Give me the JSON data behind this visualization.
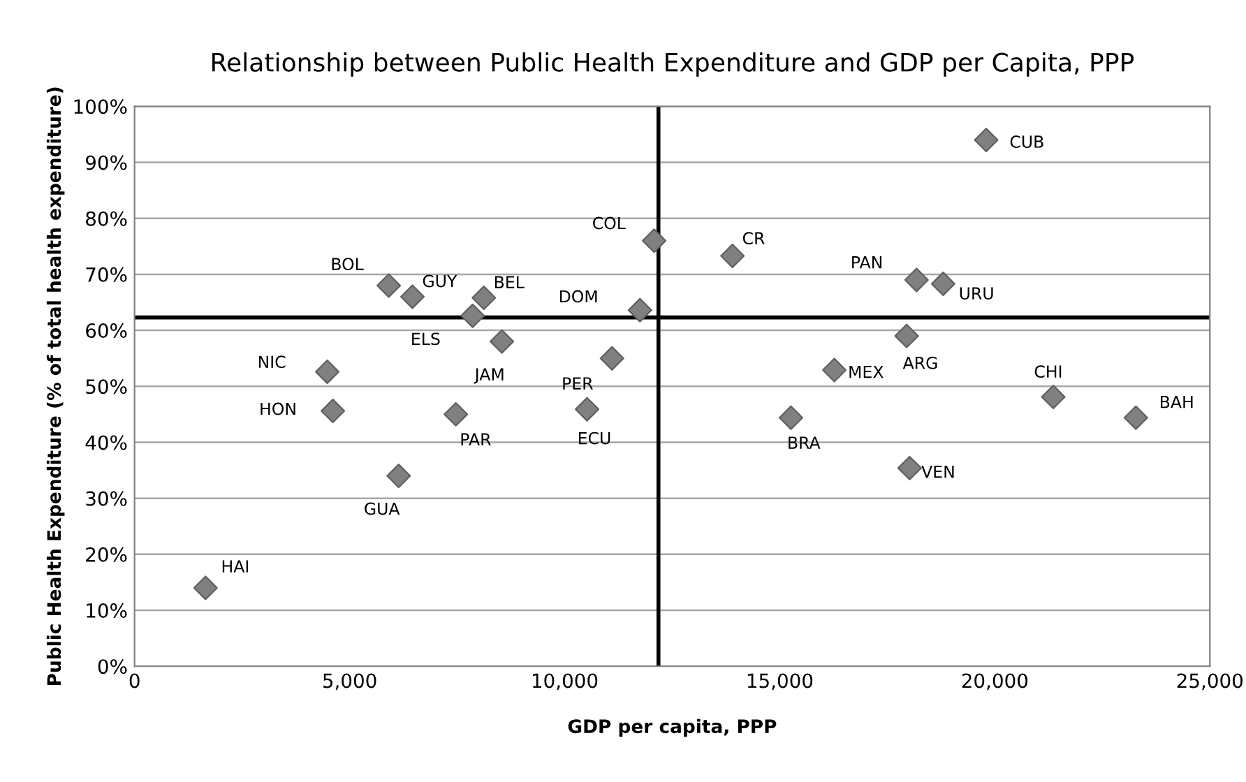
{
  "chart_data": {
    "type": "scatter",
    "title": "Relationship between Public Health Expenditure and GDP per Capita, PPP",
    "xlabel": "GDP per capita, PPP",
    "ylabel": "Public Health Expenditure (% of total health expenditure)",
    "x": [
      1650,
      4480,
      4610,
      5910,
      6460,
      6140,
      7470,
      7860,
      8120,
      8540,
      10520,
      11100,
      11750,
      12080,
      13900,
      15260,
      16270,
      18020,
      17950,
      18180,
      18800,
      19800,
      21360,
      23280
    ],
    "series": [
      {
        "color": "#808080",
        "values": [
          14,
          52.6,
          45.6,
          68,
          66,
          34,
          45,
          62.6,
          65.8,
          58,
          45.9,
          55,
          63.6,
          76,
          73.3,
          44.4,
          52.9,
          35.4,
          59,
          69,
          68.3,
          94,
          48.1,
          44.4
        ]
      }
    ],
    "annotations": [
      {
        "text": "HAI",
        "x": 1650,
        "y": 14
      },
      {
        "text": "NIC",
        "x": 4480,
        "y": 52.6
      },
      {
        "text": "HON",
        "x": 4610,
        "y": 45.6
      },
      {
        "text": "BOL",
        "x": 5910,
        "y": 68
      },
      {
        "text": "GUY",
        "x": 6460,
        "y": 66
      },
      {
        "text": "GUA",
        "x": 6140,
        "y": 34
      },
      {
        "text": "PAR",
        "x": 7470,
        "y": 45
      },
      {
        "text": "ELS",
        "x": 7860,
        "y": 62.6
      },
      {
        "text": "BEL",
        "x": 8120,
        "y": 65.8
      },
      {
        "text": "JAM",
        "x": 8540,
        "y": 58
      },
      {
        "text": "ECU",
        "x": 10520,
        "y": 45.9
      },
      {
        "text": "PER",
        "x": 11100,
        "y": 55
      },
      {
        "text": "DOM",
        "x": 11750,
        "y": 63.6
      },
      {
        "text": "COL",
        "x": 12080,
        "y": 76
      },
      {
        "text": "CR",
        "x": 13900,
        "y": 73.3
      },
      {
        "text": "BRA",
        "x": 15260,
        "y": 44.4
      },
      {
        "text": "MEX",
        "x": 16270,
        "y": 52.9
      },
      {
        "text": "VEN",
        "x": 18020,
        "y": 35.4
      },
      {
        "text": "ARG",
        "x": 17950,
        "y": 59
      },
      {
        "text": "PAN",
        "x": 18180,
        "y": 69
      },
      {
        "text": "URU",
        "x": 18800,
        "y": 68.3
      },
      {
        "text": "CUB",
        "x": 19800,
        "y": 94
      },
      {
        "text": "CHI",
        "x": 21360,
        "y": 48.1
      },
      {
        "text": "BAH",
        "x": 23280,
        "y": 44.4
      }
    ],
    "ref_lines": [
      {
        "axis": "x",
        "value": 12180,
        "color": "#000000"
      },
      {
        "axis": "y",
        "value": 62.3,
        "color": "#000000"
      }
    ],
    "xlim": [
      0,
      25000
    ],
    "xticks": [
      {
        "value": 0,
        "label": "0"
      },
      {
        "value": 5000,
        "label": "5,000"
      },
      {
        "value": 10000,
        "label": "10,000"
      },
      {
        "value": 15000,
        "label": "15,000"
      },
      {
        "value": 20000,
        "label": "20,000"
      },
      {
        "value": 25000,
        "label": "25,000"
      }
    ],
    "ylim": [
      0,
      100
    ],
    "yticks": [
      {
        "value": 0,
        "label": "0%"
      },
      {
        "value": 10,
        "label": "10%"
      },
      {
        "value": 20,
        "label": "20%"
      },
      {
        "value": 30,
        "label": "30%"
      },
      {
        "value": 40,
        "label": "40%"
      },
      {
        "value": 50,
        "label": "50%"
      },
      {
        "value": 60,
        "label": "60%"
      },
      {
        "value": 70,
        "label": "70%"
      },
      {
        "value": 80,
        "label": "80%"
      },
      {
        "value": 90,
        "label": "90%"
      },
      {
        "value": 100,
        "label": "100%"
      }
    ],
    "grid": "y",
    "marker": "diamond",
    "legend": false
  }
}
